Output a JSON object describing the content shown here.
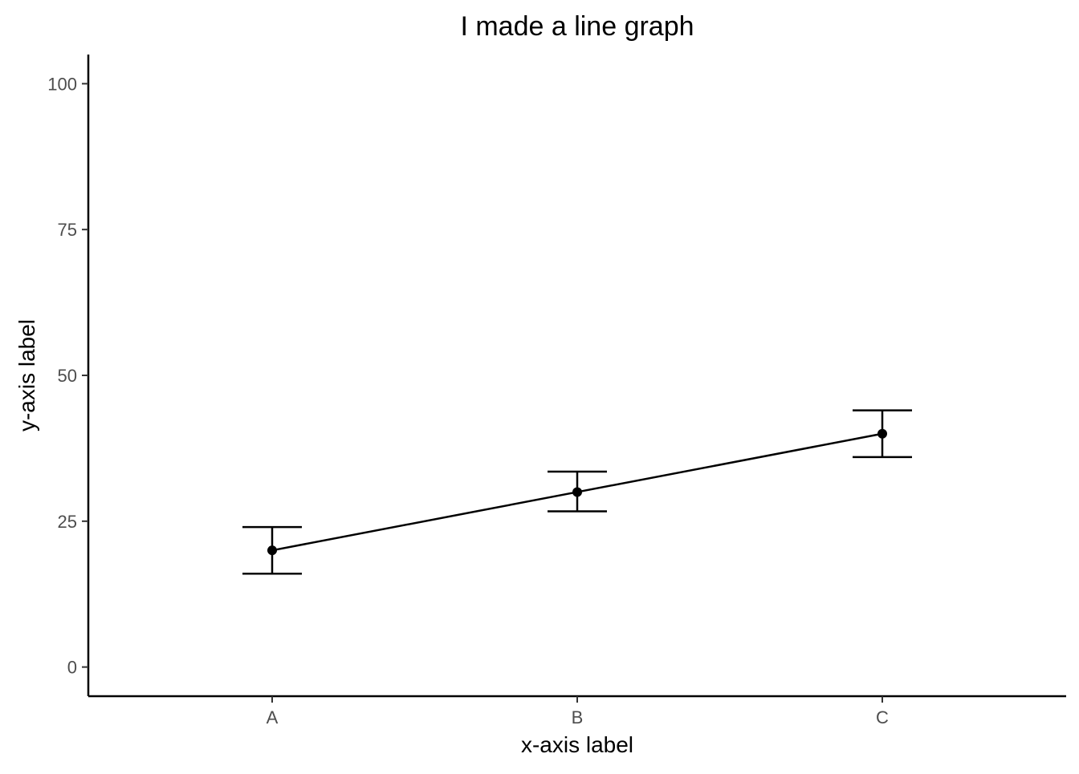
{
  "chart_data": {
    "type": "line",
    "title": "I made a line graph",
    "xlabel": "x-axis label",
    "ylabel": "y-axis label",
    "categories": [
      "A",
      "B",
      "C"
    ],
    "series": [
      {
        "values": [
          20,
          30,
          40
        ],
        "error_low": [
          16,
          26.7,
          36
        ],
        "error_high": [
          24,
          33.5,
          44
        ]
      }
    ],
    "ylim": [
      -5,
      105
    ],
    "y_ticks": [
      0,
      25,
      50,
      75,
      100
    ],
    "grid": false,
    "legend": "none",
    "colors": {
      "line": "#000000",
      "axis": "#000000",
      "tick_label": "#4d4d4d"
    }
  }
}
